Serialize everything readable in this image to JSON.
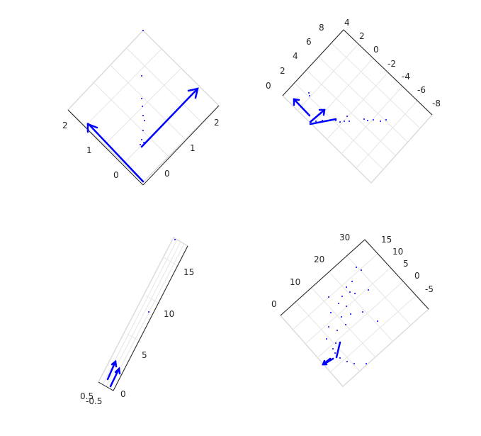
{
  "figure": {
    "background": "#ffffff"
  },
  "colors": {
    "data": "#0000ff",
    "axis": "#262626",
    "grid": "#e6e6e6"
  },
  "chart_data": [
    {
      "type": "scatter",
      "view": "3d",
      "tick_labels_a": [
        "2",
        "1",
        "0"
      ],
      "tick_labels_b": [
        "2",
        "1",
        "0"
      ],
      "series": [
        {
          "kind": "points",
          "values": [
            [
              0.8,
              2.6
            ],
            [
              0.82,
              2.0
            ],
            [
              0.83,
              1.75
            ],
            [
              0.84,
              1.6
            ],
            [
              0.85,
              1.5
            ],
            [
              0.86,
              1.45
            ],
            [
              0.88,
              1.2
            ],
            [
              0.9,
              0.95
            ],
            [
              0.91,
              0.9
            ],
            [
              0.9,
              0.85
            ]
          ]
        },
        {
          "kind": "vectors",
          "values": [
            [
              0,
              0,
              2,
              -1
            ],
            [
              0.9,
              0.9,
              3.4,
              -0.9
            ]
          ]
        }
      ]
    },
    {
      "type": "scatter",
      "view": "3d",
      "tick_labels_a": [
        "0",
        "2",
        "4",
        "6",
        "8"
      ],
      "tick_labels_b": [
        "4",
        "2",
        "0",
        "-2",
        "-4",
        "-6",
        "-8"
      ],
      "series": [
        {
          "kind": "points",
          "values": [
            [
              1,
              0
            ],
            [
              1.2,
              0.2
            ],
            [
              2,
              0.4
            ],
            [
              3,
              0.6
            ],
            [
              4,
              0.7
            ],
            [
              5,
              0.6
            ],
            [
              6,
              0.8
            ],
            [
              7,
              0.9
            ],
            [
              8,
              1.0
            ],
            [
              9,
              1.0
            ]
          ]
        },
        {
          "kind": "vectors",
          "values": [
            [
              0,
              0,
              -1,
              1
            ],
            [
              0,
              0,
              1,
              1
            ]
          ]
        }
      ]
    },
    {
      "type": "scatter",
      "view": "3d",
      "tick_labels_a": [
        "0",
        "5",
        "10",
        "15"
      ],
      "tick_labels_b": [
        "0.5",
        "-0.5"
      ],
      "series": [
        {
          "kind": "points",
          "values": [
            [
              0,
              9
            ],
            [
              0,
              17
            ]
          ]
        },
        {
          "kind": "vectors",
          "values": [
            [
              0,
              0,
              0.5,
              2
            ],
            [
              0.2,
              0,
              0.7,
              2
            ]
          ]
        }
      ]
    },
    {
      "type": "scatter",
      "view": "3d",
      "tick_labels_a": [
        "0",
        "10",
        "20",
        "30"
      ],
      "tick_labels_b": [
        "15",
        "10",
        "5",
        "0",
        "-5"
      ],
      "series": [
        {
          "kind": "points",
          "values": [
            [
              0,
              0
            ],
            [
              5,
              10
            ],
            [
              10,
              20
            ],
            [
              15,
              25
            ],
            [
              20,
              30
            ]
          ]
        },
        {
          "kind": "vectors",
          "values": [
            [
              0,
              0,
              -1,
              1
            ],
            [
              0,
              0,
              1,
              0.5
            ]
          ]
        }
      ]
    }
  ]
}
